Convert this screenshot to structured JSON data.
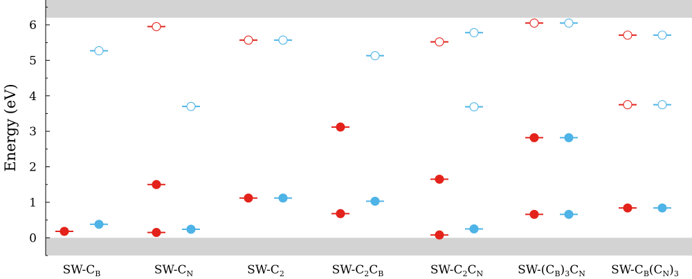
{
  "chart_data": {
    "type": "scatter",
    "ylabel": "Energy (eV)",
    "ylim": [
      -0.5,
      6.7
    ],
    "yticks": [
      0,
      1,
      2,
      3,
      4,
      5,
      6
    ],
    "bands": [
      [
        -0.5,
        0
      ],
      [
        6.2,
        6.7
      ]
    ],
    "band_color": "#d3d3d3",
    "categories": [
      {
        "main": "SW-C",
        "parts": [
          {
            "t": "SW-C",
            "sub": false
          },
          {
            "t": "B",
            "sub": true
          }
        ]
      },
      {
        "main": "SW-C",
        "parts": [
          {
            "t": "SW-C",
            "sub": false
          },
          {
            "t": "N",
            "sub": true
          }
        ]
      },
      {
        "main": "SW-C",
        "parts": [
          {
            "t": "SW-C",
            "sub": false
          },
          {
            "t": "2",
            "sub": true
          }
        ]
      },
      {
        "main": "SW-C",
        "parts": [
          {
            "t": "SW-C",
            "sub": false
          },
          {
            "t": "2",
            "sub": true
          },
          {
            "t": "C",
            "sub": false
          },
          {
            "t": "B",
            "sub": true
          }
        ]
      },
      {
        "main": "SW-C",
        "parts": [
          {
            "t": "SW-C",
            "sub": false
          },
          {
            "t": "2",
            "sub": true
          },
          {
            "t": "C",
            "sub": false
          },
          {
            "t": "N",
            "sub": true
          }
        ]
      },
      {
        "main": "SW-(C",
        "parts": [
          {
            "t": "SW-(C",
            "sub": false
          },
          {
            "t": "B",
            "sub": true
          },
          {
            "t": ")",
            "sub": false
          },
          {
            "t": "3",
            "sub": true
          },
          {
            "t": "C",
            "sub": false
          },
          {
            "t": "N",
            "sub": true
          }
        ]
      },
      {
        "main": "SW-C",
        "parts": [
          {
            "t": "SW-C",
            "sub": false
          },
          {
            "t": "B",
            "sub": true
          },
          {
            "t": "(C",
            "sub": false
          },
          {
            "t": "N",
            "sub": true
          },
          {
            "t": ")",
            "sub": false
          },
          {
            "t": "3",
            "sub": true
          }
        ]
      }
    ],
    "series": [
      {
        "color": "#e3231b",
        "side": "left",
        "filled": [
          [
            0.18
          ],
          [
            1.5,
            0.15
          ],
          [
            1.12
          ],
          [
            3.12,
            0.68
          ],
          [
            1.65,
            0.08
          ],
          [
            2.82,
            0.66
          ],
          [
            0.84
          ]
        ],
        "empty": [
          [],
          [
            5.95
          ],
          [
            5.57
          ],
          [],
          [
            5.52
          ],
          [
            6.05
          ],
          [
            5.71,
            3.75
          ]
        ]
      },
      {
        "color": "#4eb3e6",
        "side": "right",
        "filled": [
          [
            0.38
          ],
          [
            0.24
          ],
          [
            1.12
          ],
          [
            1.03
          ],
          [
            0.25
          ],
          [
            2.82,
            0.66
          ],
          [
            0.84
          ]
        ],
        "empty": [
          [
            5.27
          ],
          [
            3.7
          ],
          [
            5.57
          ],
          [
            5.13
          ],
          [
            5.78,
            3.69
          ],
          [
            6.05
          ],
          [
            5.71,
            3.75
          ]
        ]
      }
    ]
  }
}
